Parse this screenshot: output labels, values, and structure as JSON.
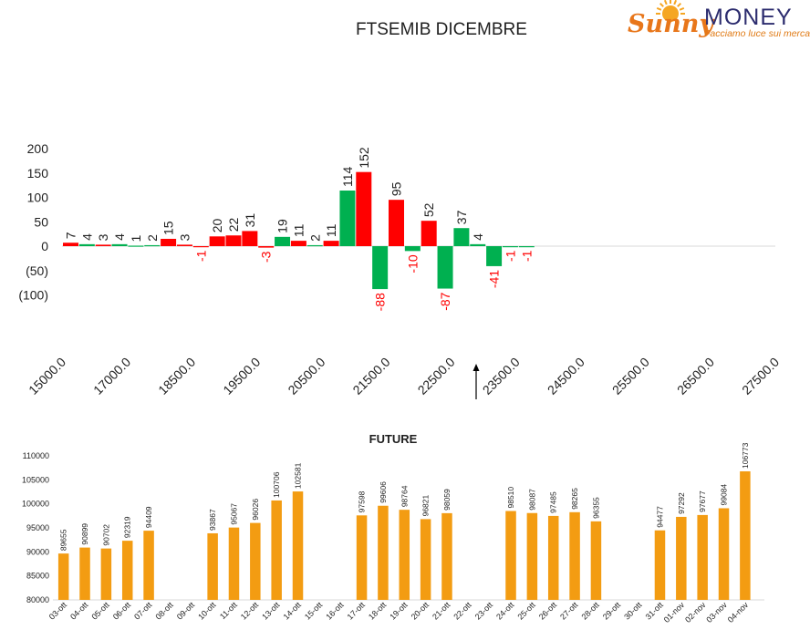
{
  "brand": {
    "name_part1": "Sunny",
    "name_part2": "MONEY",
    "tagline": "Facciamo luce sui mercati",
    "colors": {
      "sun": "#f5a623",
      "sunny_text": "#e8761a",
      "money_text": "#2c2c6e"
    }
  },
  "colors": {
    "positive": "#ff0000",
    "negative": "#00b050",
    "future_bar": "#f39c12",
    "neg_label": "#ff0000",
    "axis_neg_label": "#c00000"
  },
  "chart_data": [
    {
      "type": "bar",
      "title": "FTSEMIB DICEMBRE",
      "xlabel": "",
      "ylabel": "",
      "ylim": [
        -100,
        200
      ],
      "yticks": [
        200,
        150,
        100,
        50,
        0,
        -50,
        -100
      ],
      "ytick_labels": [
        "200",
        "150",
        "100",
        "50",
        "0",
        "(50)",
        "(100)"
      ],
      "xtick_labels": [
        "15000.0",
        "17000.0",
        "18500.0",
        "19500.0",
        "20500.0",
        "21500.0",
        "22500.0",
        "23500.0",
        "24500.0",
        "25500.0",
        "26500.0",
        "27500.0"
      ],
      "bars": [
        {
          "value": 7,
          "color": "red"
        },
        {
          "value": 4,
          "color": "green"
        },
        {
          "value": 3,
          "color": "red"
        },
        {
          "value": 4,
          "color": "green"
        },
        {
          "value": 1,
          "color": "green"
        },
        {
          "value": 2,
          "color": "green"
        },
        {
          "value": 15,
          "color": "red"
        },
        {
          "value": 3,
          "color": "red"
        },
        {
          "value": -1,
          "color": "red"
        },
        {
          "value": 20,
          "color": "red"
        },
        {
          "value": 22,
          "color": "red"
        },
        {
          "value": 31,
          "color": "red"
        },
        {
          "value": -3,
          "color": "red"
        },
        {
          "value": 19,
          "color": "green"
        },
        {
          "value": 11,
          "color": "red"
        },
        {
          "value": 2,
          "color": "green"
        },
        {
          "value": 11,
          "color": "red"
        },
        {
          "value": 114,
          "color": "green"
        },
        {
          "value": 152,
          "color": "red"
        },
        {
          "value": -88,
          "color": "green"
        },
        {
          "value": 95,
          "color": "red"
        },
        {
          "value": -10,
          "color": "green"
        },
        {
          "value": 52,
          "color": "red"
        },
        {
          "value": -87,
          "color": "green"
        },
        {
          "value": 37,
          "color": "green"
        },
        {
          "value": 4,
          "color": "green"
        },
        {
          "value": -41,
          "color": "green"
        },
        {
          "value": -1,
          "color": "green"
        },
        {
          "value": -1,
          "color": "green"
        }
      ],
      "grid": false
    },
    {
      "type": "bar",
      "title": "FUTURE",
      "xlabel": "",
      "ylabel": "",
      "ylim": [
        80000,
        110000
      ],
      "yticks": [
        80000,
        85000,
        90000,
        95000,
        100000,
        105000,
        110000
      ],
      "categories": [
        "03-ott",
        "04-ott",
        "05-ott",
        "06-ott",
        "07-ott",
        "08-ott",
        "09-ott",
        "10-ott",
        "11-ott",
        "12-ott",
        "13-ott",
        "14-ott",
        "15-ott",
        "16-ott",
        "17-ott",
        "18-ott",
        "19-ott",
        "20-ott",
        "21-ott",
        "22-ott",
        "23-ott",
        "24-ott",
        "25-ott",
        "26-ott",
        "27-ott",
        "28-ott",
        "29-ott",
        "30-ott",
        "31-ott",
        "01-nov",
        "02-nov",
        "03-nov",
        "04-nov"
      ],
      "values": [
        89655,
        90899,
        90702,
        92319,
        94409,
        null,
        null,
        93867,
        95067,
        96026,
        100706,
        102581,
        null,
        null,
        97598,
        99606,
        98764,
        96821,
        98059,
        null,
        null,
        98510,
        98087,
        97485,
        98265,
        96355,
        null,
        null,
        94477,
        97292,
        97677,
        99084,
        106773
      ],
      "grid": false
    }
  ]
}
